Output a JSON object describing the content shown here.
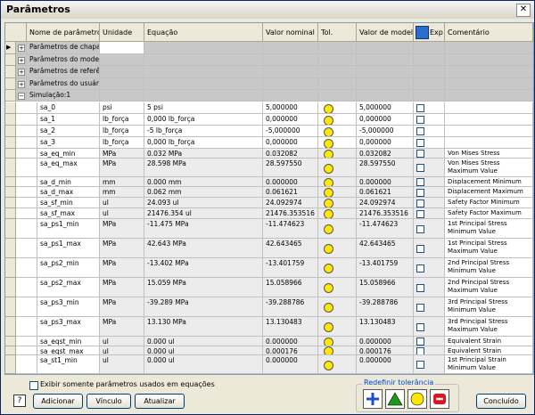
{
  "header": {
    "title": "Parâmetros"
  },
  "table": {
    "columns": [
      "Nome de parâmetro",
      "Unidade",
      "Equação",
      "Valor nominal",
      "Tol.",
      "Valor de modelo",
      "Exp",
      "Comentário"
    ],
    "groups": [
      "Parâmetros de chapa",
      "Parâmetros do modelo",
      "Parâmetros de referên...",
      "Parâmetros do usuário",
      "Simulação:1"
    ],
    "rows": [
      [
        "sa_0",
        "psi",
        "5 psi",
        "5,000000",
        "5,000000",
        ""
      ],
      [
        "sa_1",
        "lb_força",
        "0,000 lb_força",
        "0,000000",
        "0,000000",
        ""
      ],
      [
        "sa_2",
        "lb_força",
        "-5 lb_força",
        "-5,000000",
        "-5,000000",
        ""
      ],
      [
        "sa_3",
        "lb_força",
        "0,000 lb_força",
        "0,000000",
        "0,000000",
        ""
      ],
      [
        "sa_eq_min",
        "MPa",
        "0.032 MPa",
        "0.032082",
        "0.032082",
        "Von Mises Stress Minimum Value"
      ],
      [
        "sa_eq_max",
        "MPa",
        "28.598 MPa",
        "28.597550",
        "28.597550",
        "Von Mises Stress Maximum Value"
      ],
      [
        "sa_d_min",
        "mm",
        "0.000 mm",
        "0.000000",
        "0.000000",
        "Displacement Minimum Value"
      ],
      [
        "sa_d_max",
        "mm",
        "0.062 mm",
        "0.061621",
        "0.061621",
        "Displacement Maximum Value"
      ],
      [
        "sa_sf_min",
        "ul",
        "24.093 ul",
        "24.092974",
        "24.092974",
        "Safety Factor Minimum Value"
      ],
      [
        "sa_sf_max",
        "ul",
        "21476.354 ul",
        "21476.353516",
        "21476.353516",
        "Safety Factor Maximum Value"
      ],
      [
        "sa_ps1_min",
        "MPa",
        "-11.475 MPa",
        "-11.474623",
        "-11.474623",
        "1st Principal Stress Minimum Value"
      ],
      [
        "sa_ps1_max",
        "MPa",
        "42.643 MPa",
        "42.643465",
        "42.643465",
        "1st Principal Stress Maximum Value"
      ],
      [
        "sa_ps2_min",
        "MPa",
        "-13.402 MPa",
        "-13.401759",
        "-13.401759",
        "2nd Principal Stress Minimum Value"
      ],
      [
        "sa_ps2_max",
        "MPa",
        "15.059 MPa",
        "15.058966",
        "15.058966",
        "2nd Principal Stress Maximum Value"
      ],
      [
        "sa_ps3_min",
        "MPa",
        "-39.289 MPa",
        "-39.288786",
        "-39.288786",
        "3rd Principal Stress Minimum Value"
      ],
      [
        "sa_ps3_max",
        "MPa",
        "13.130 MPa",
        "13.130483",
        "13.130483",
        "3rd Principal Stress Maximum Value"
      ],
      [
        "sa_eqst_min",
        "ul",
        "0.000 ul",
        "0.000000",
        "0.000000",
        "Equivalent Strain Minimum Value"
      ],
      [
        "sa_eqst_max",
        "ul",
        "0.000 ul",
        "0.000176",
        "0.000176",
        "Equivalent Strain Maximum Value"
      ],
      [
        "sa_st1_min",
        "ul",
        "0.000 ul",
        "0.000000",
        "0.000000",
        "1st Principal Strain Minimum Value"
      ]
    ]
  },
  "footer": {
    "checkbox": "Exibir somente parâmetros usados em equações",
    "buttons": [
      "Adicionar",
      "Vínculo",
      "Atualizar"
    ],
    "tolerance": "Redefinir tolerância",
    "done": "Concluído"
  }
}
